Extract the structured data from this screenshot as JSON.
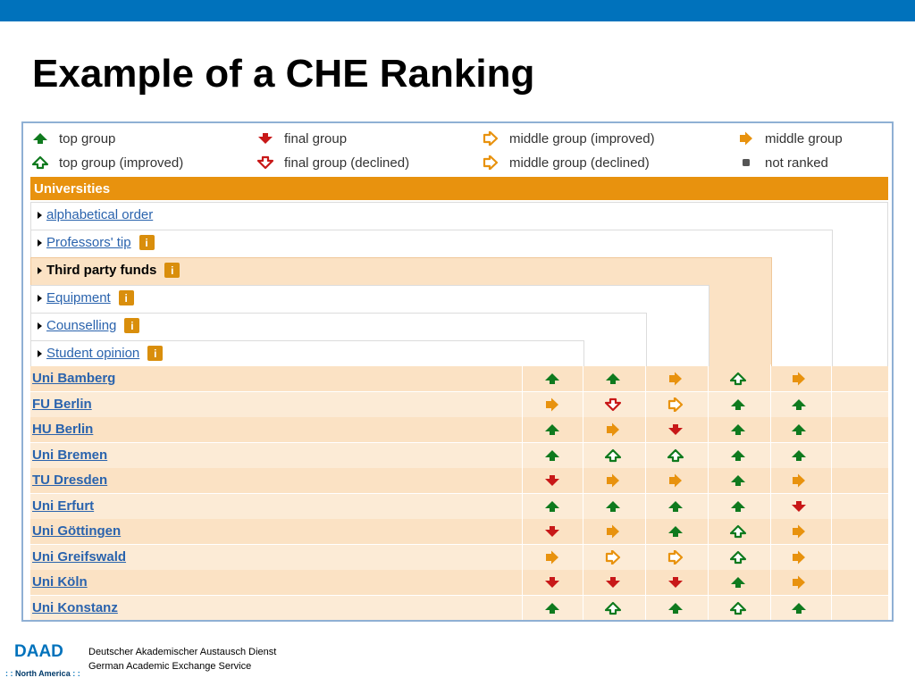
{
  "slide": {
    "title": "Example of a CHE Ranking"
  },
  "legend": [
    {
      "icon": "top",
      "label": "top group"
    },
    {
      "icon": "top-improved",
      "label": "top group (improved)"
    },
    {
      "icon": "final",
      "label": "final group"
    },
    {
      "icon": "final-declined",
      "label": "final group (declined)"
    },
    {
      "icon": "middle-improved",
      "label": "middle group (improved)"
    },
    {
      "icon": "middle-declined",
      "label": "middle group (declined)"
    },
    {
      "icon": "middle",
      "label": "middle group"
    },
    {
      "icon": "not-ranked",
      "label": "not ranked"
    }
  ],
  "table": {
    "header": "Universities",
    "criteria": [
      {
        "label": "alphabetical order",
        "info": false,
        "bold": false
      },
      {
        "label": "Professors' tip",
        "info": true,
        "bold": false
      },
      {
        "label": "Third party funds",
        "info": true,
        "bold": true
      },
      {
        "label": "Equipment",
        "info": true,
        "bold": false
      },
      {
        "label": "Counselling",
        "info": true,
        "bold": false
      },
      {
        "label": "Student opinion",
        "info": true,
        "bold": false
      }
    ],
    "info_glyph": "i",
    "rows": [
      {
        "name": "Uni Bamberg",
        "ranks": [
          "top",
          "top",
          "middle",
          "top-improved",
          "middle"
        ]
      },
      {
        "name": "FU Berlin",
        "ranks": [
          "middle",
          "final-declined",
          "middle-improved",
          "top",
          "top"
        ]
      },
      {
        "name": "HU Berlin",
        "ranks": [
          "top",
          "middle",
          "final",
          "top",
          "top"
        ]
      },
      {
        "name": "Uni Bremen",
        "ranks": [
          "top",
          "top-improved",
          "top-improved",
          "top",
          "top"
        ]
      },
      {
        "name": "TU Dresden",
        "ranks": [
          "final",
          "middle",
          "middle",
          "top",
          "middle"
        ]
      },
      {
        "name": "Uni Erfurt",
        "ranks": [
          "top",
          "top",
          "top",
          "top",
          "final"
        ]
      },
      {
        "name": "Uni Göttingen",
        "ranks": [
          "final",
          "middle",
          "top",
          "top-improved",
          "middle"
        ]
      },
      {
        "name": "Uni Greifswald",
        "ranks": [
          "middle",
          "middle-improved",
          "middle-improved",
          "top-improved",
          "middle"
        ]
      },
      {
        "name": "Uni Köln",
        "ranks": [
          "final",
          "final",
          "final",
          "top",
          "middle"
        ]
      },
      {
        "name": "Uni Konstanz",
        "ranks": [
          "top",
          "top-improved",
          "top",
          "top-improved",
          "top"
        ]
      }
    ]
  },
  "colors": {
    "top": "#0f7a1e",
    "final": "#c81818",
    "middle": "#e8920e",
    "not_ranked": "#555555",
    "header": "#e8920e",
    "topbar": "#0072bc"
  },
  "footer": {
    "logo": "DAAD",
    "region_prefix": ": :",
    "region": "North America",
    "region_suffix": ": :",
    "line1": "Deutscher Akademischer Austausch Dienst",
    "line2": "German Academic Exchange Service"
  }
}
